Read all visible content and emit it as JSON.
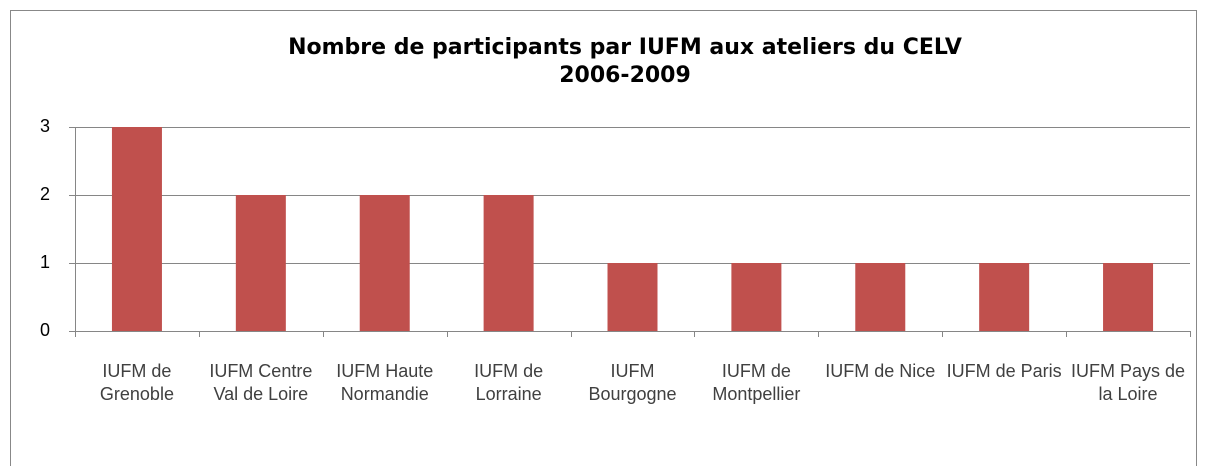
{
  "chart_data": {
    "type": "bar",
    "title": "Nombre de participants par IUFM aux ateliers du CELV",
    "subtitle": "2006-2009",
    "categories": [
      "IUFM de Grenoble",
      "IUFM Centre Val de Loire",
      "IUFM Haute Normandie",
      "IUFM de Lorraine",
      "IUFM Bourgogne",
      "IUFM de Montpellier",
      "IUFM de Nice",
      "IUFM de Paris",
      "IUFM Pays de la Loire"
    ],
    "values": [
      3,
      2,
      2,
      2,
      1,
      1,
      1,
      1,
      1
    ],
    "color": "#c0504d",
    "ylim": [
      0,
      3
    ],
    "yticks": [
      0,
      1,
      2,
      3
    ],
    "grid": true
  }
}
